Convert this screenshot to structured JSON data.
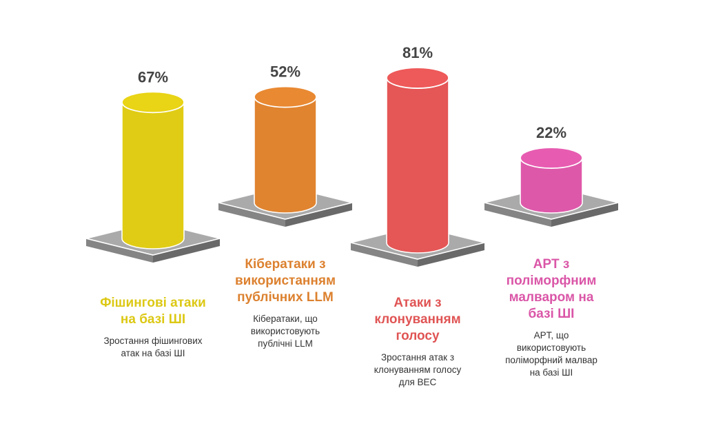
{
  "chart_data": {
    "type": "bar",
    "style": "3d-cylinders-on-platforms",
    "ylim": [
      0,
      100
    ],
    "grid": false,
    "series": [
      {
        "values": [
          67,
          52,
          81,
          22
        ],
        "labels": [
          "67%",
          "52%",
          "81%",
          "22%"
        ]
      }
    ],
    "categories": [
      "Фішингові атаки на базі ШІ",
      "Кібератаки з використанням публічних LLM",
      "Атаки з клонуванням голосу",
      "APT з поліморфним малваром на базі ШІ"
    ],
    "bars": [
      {
        "value": 67,
        "value_label": "67%",
        "title_lines": [
          "Фішингові атаки",
          "на базі ШІ"
        ],
        "desc_lines": [
          "Зростання фішингових",
          "атак на базі ШІ"
        ],
        "color": "#e0cc14"
      },
      {
        "value": 52,
        "value_label": "52%",
        "title_lines": [
          "Кібератаки з",
          "використанням",
          "публічних LLM"
        ],
        "desc_lines": [
          "Кібератаки, що",
          "використовують",
          "публічні LLM"
        ],
        "color": "#e08430"
      },
      {
        "value": 81,
        "value_label": "81%",
        "title_lines": [
          "Атаки з",
          "клонуванням",
          "голосу"
        ],
        "desc_lines": [
          "Зростання атак з",
          "клонуванням голосу",
          "для BEC"
        ],
        "color": "#e55656"
      },
      {
        "value": 22,
        "value_label": "22%",
        "title_lines": [
          "APT з",
          "поліморфним",
          "малваром на",
          "базі ШІ"
        ],
        "desc_lines": [
          "APT, що",
          "використовують",
          "поліморфний малвар",
          "на базі ШІ"
        ],
        "color": "#de58aa"
      }
    ],
    "platform_color": "#aaaaaa"
  }
}
